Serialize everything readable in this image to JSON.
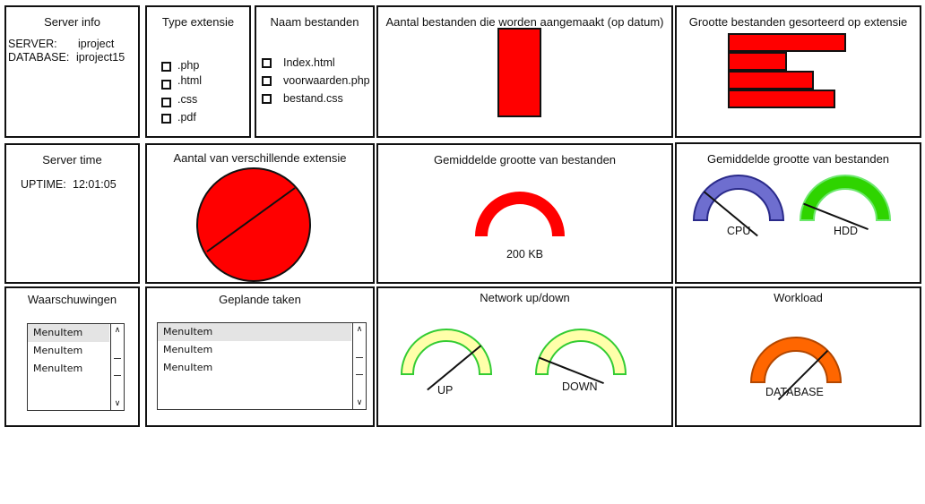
{
  "server_info": {
    "title": "Server info",
    "server_label": "SERVER:",
    "server_value": "iproject",
    "database_label": "DATABASE:",
    "database_value": "iproject15"
  },
  "type_extensie": {
    "title": "Type extensie",
    "items": [
      ".php",
      ".html",
      ".css",
      ".pdf"
    ]
  },
  "naam_bestanden": {
    "title": "Naam bestanden",
    "items": [
      "Index.html",
      "voorwaarden.php",
      "bestand.css"
    ]
  },
  "aantal_bestanden": {
    "title": "Aantal bestanden die worden aangemaakt (op datum)",
    "chart_data": {
      "type": "bar",
      "categories": [
        ""
      ],
      "values": [
        1
      ],
      "bar_color": "#ff0000"
    }
  },
  "grootte_bestanden": {
    "title": "Grootte bestanden gesorteerd op extensie",
    "chart_data": {
      "type": "bar",
      "orientation": "horizontal",
      "categories": [
        "",
        "",
        "",
        ""
      ],
      "values": [
        130,
        64,
        94,
        118
      ],
      "bar_color": "#ff0000"
    }
  },
  "server_time": {
    "title": "Server time",
    "uptime_label": "UPTIME:",
    "uptime_value": "12:01:05"
  },
  "aantal_extensie": {
    "title": "Aantal van verschillende extensie",
    "chart_data": {
      "type": "pie",
      "values": [
        1
      ],
      "fill_color": "#ff0000"
    }
  },
  "gem_grootte": {
    "title": "Gemiddelde grootte van bestanden",
    "value_label": "200 KB",
    "color": "#ff0000"
  },
  "gem_grootte_hw": {
    "title": "Gemiddelde grootte van bestanden",
    "gauges": [
      {
        "label": "CPU",
        "color": "#6e6ecf",
        "stroke": "#2a2a8a",
        "fraction": 0.22
      },
      {
        "label": "HDD",
        "color": "#2fd400",
        "stroke": "#6ee86e",
        "fraction": 0.12
      }
    ]
  },
  "waarschuwingen": {
    "title": "Waarschuwingen",
    "items": [
      "MenuItem",
      "MenuItem",
      "MenuItem"
    ],
    "selected_index": 0
  },
  "geplande_taken": {
    "title": "Geplande taken",
    "items": [
      "MenuItem",
      "MenuItem",
      "MenuItem"
    ],
    "selected_index": 0
  },
  "network": {
    "title": "Network up/down",
    "gauges": [
      {
        "label": "UP",
        "color": "#ffffaa",
        "stroke": "#33cc33",
        "fraction": 0.78
      },
      {
        "label": "DOWN",
        "color": "#ffffaa",
        "stroke": "#33cc33",
        "fraction": 0.12
      }
    ]
  },
  "workload": {
    "title": "Workload",
    "gauges": [
      {
        "label": "DATABASE",
        "color": "#ff6600",
        "stroke": "#b34700",
        "fraction": 0.75
      }
    ]
  }
}
